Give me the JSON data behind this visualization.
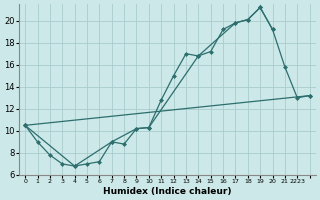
{
  "xlabel": "Humidex (Indice chaleur)",
  "bg_color": "#cce8e8",
  "grid_color": "#aacccc",
  "line_color": "#2d6e6e",
  "xlim": [
    -0.5,
    23.5
  ],
  "ylim": [
    6,
    21.5
  ],
  "yticks": [
    6,
    8,
    10,
    12,
    14,
    16,
    18,
    20
  ],
  "xtick_positions": [
    0,
    1,
    2,
    3,
    4,
    5,
    6,
    7,
    8,
    9,
    10,
    11,
    12,
    13,
    14,
    15,
    16,
    17,
    18,
    19,
    20,
    21,
    22,
    23
  ],
  "xtick_labels": [
    "0",
    "1",
    "2",
    "3",
    "4",
    "5",
    "6",
    "7",
    "8",
    "9",
    "10",
    "11",
    "12",
    "13",
    "14",
    "15",
    "16",
    "17",
    "18",
    "19",
    "20",
    "21",
    "2223",
    ""
  ],
  "line1_x": [
    0,
    1,
    2,
    3,
    4,
    5,
    6,
    7,
    8,
    9,
    10,
    11,
    12,
    13,
    14,
    15,
    16,
    17,
    18,
    19,
    20
  ],
  "line1_y": [
    10.5,
    9.0,
    7.8,
    7.0,
    6.8,
    7.0,
    7.2,
    9.0,
    8.8,
    10.2,
    10.3,
    12.8,
    15.0,
    17.0,
    16.8,
    17.2,
    19.2,
    19.8,
    20.1,
    21.2,
    19.2
  ],
  "line2_x": [
    0,
    4,
    7,
    9,
    10,
    14,
    17,
    18,
    19,
    20,
    21,
    22,
    23
  ],
  "line2_y": [
    10.5,
    6.8,
    9.0,
    10.2,
    10.3,
    16.8,
    19.8,
    20.1,
    21.2,
    19.2,
    15.8,
    13.0,
    13.2
  ],
  "line3_x": [
    0,
    23
  ],
  "line3_y": [
    10.5,
    13.2
  ]
}
